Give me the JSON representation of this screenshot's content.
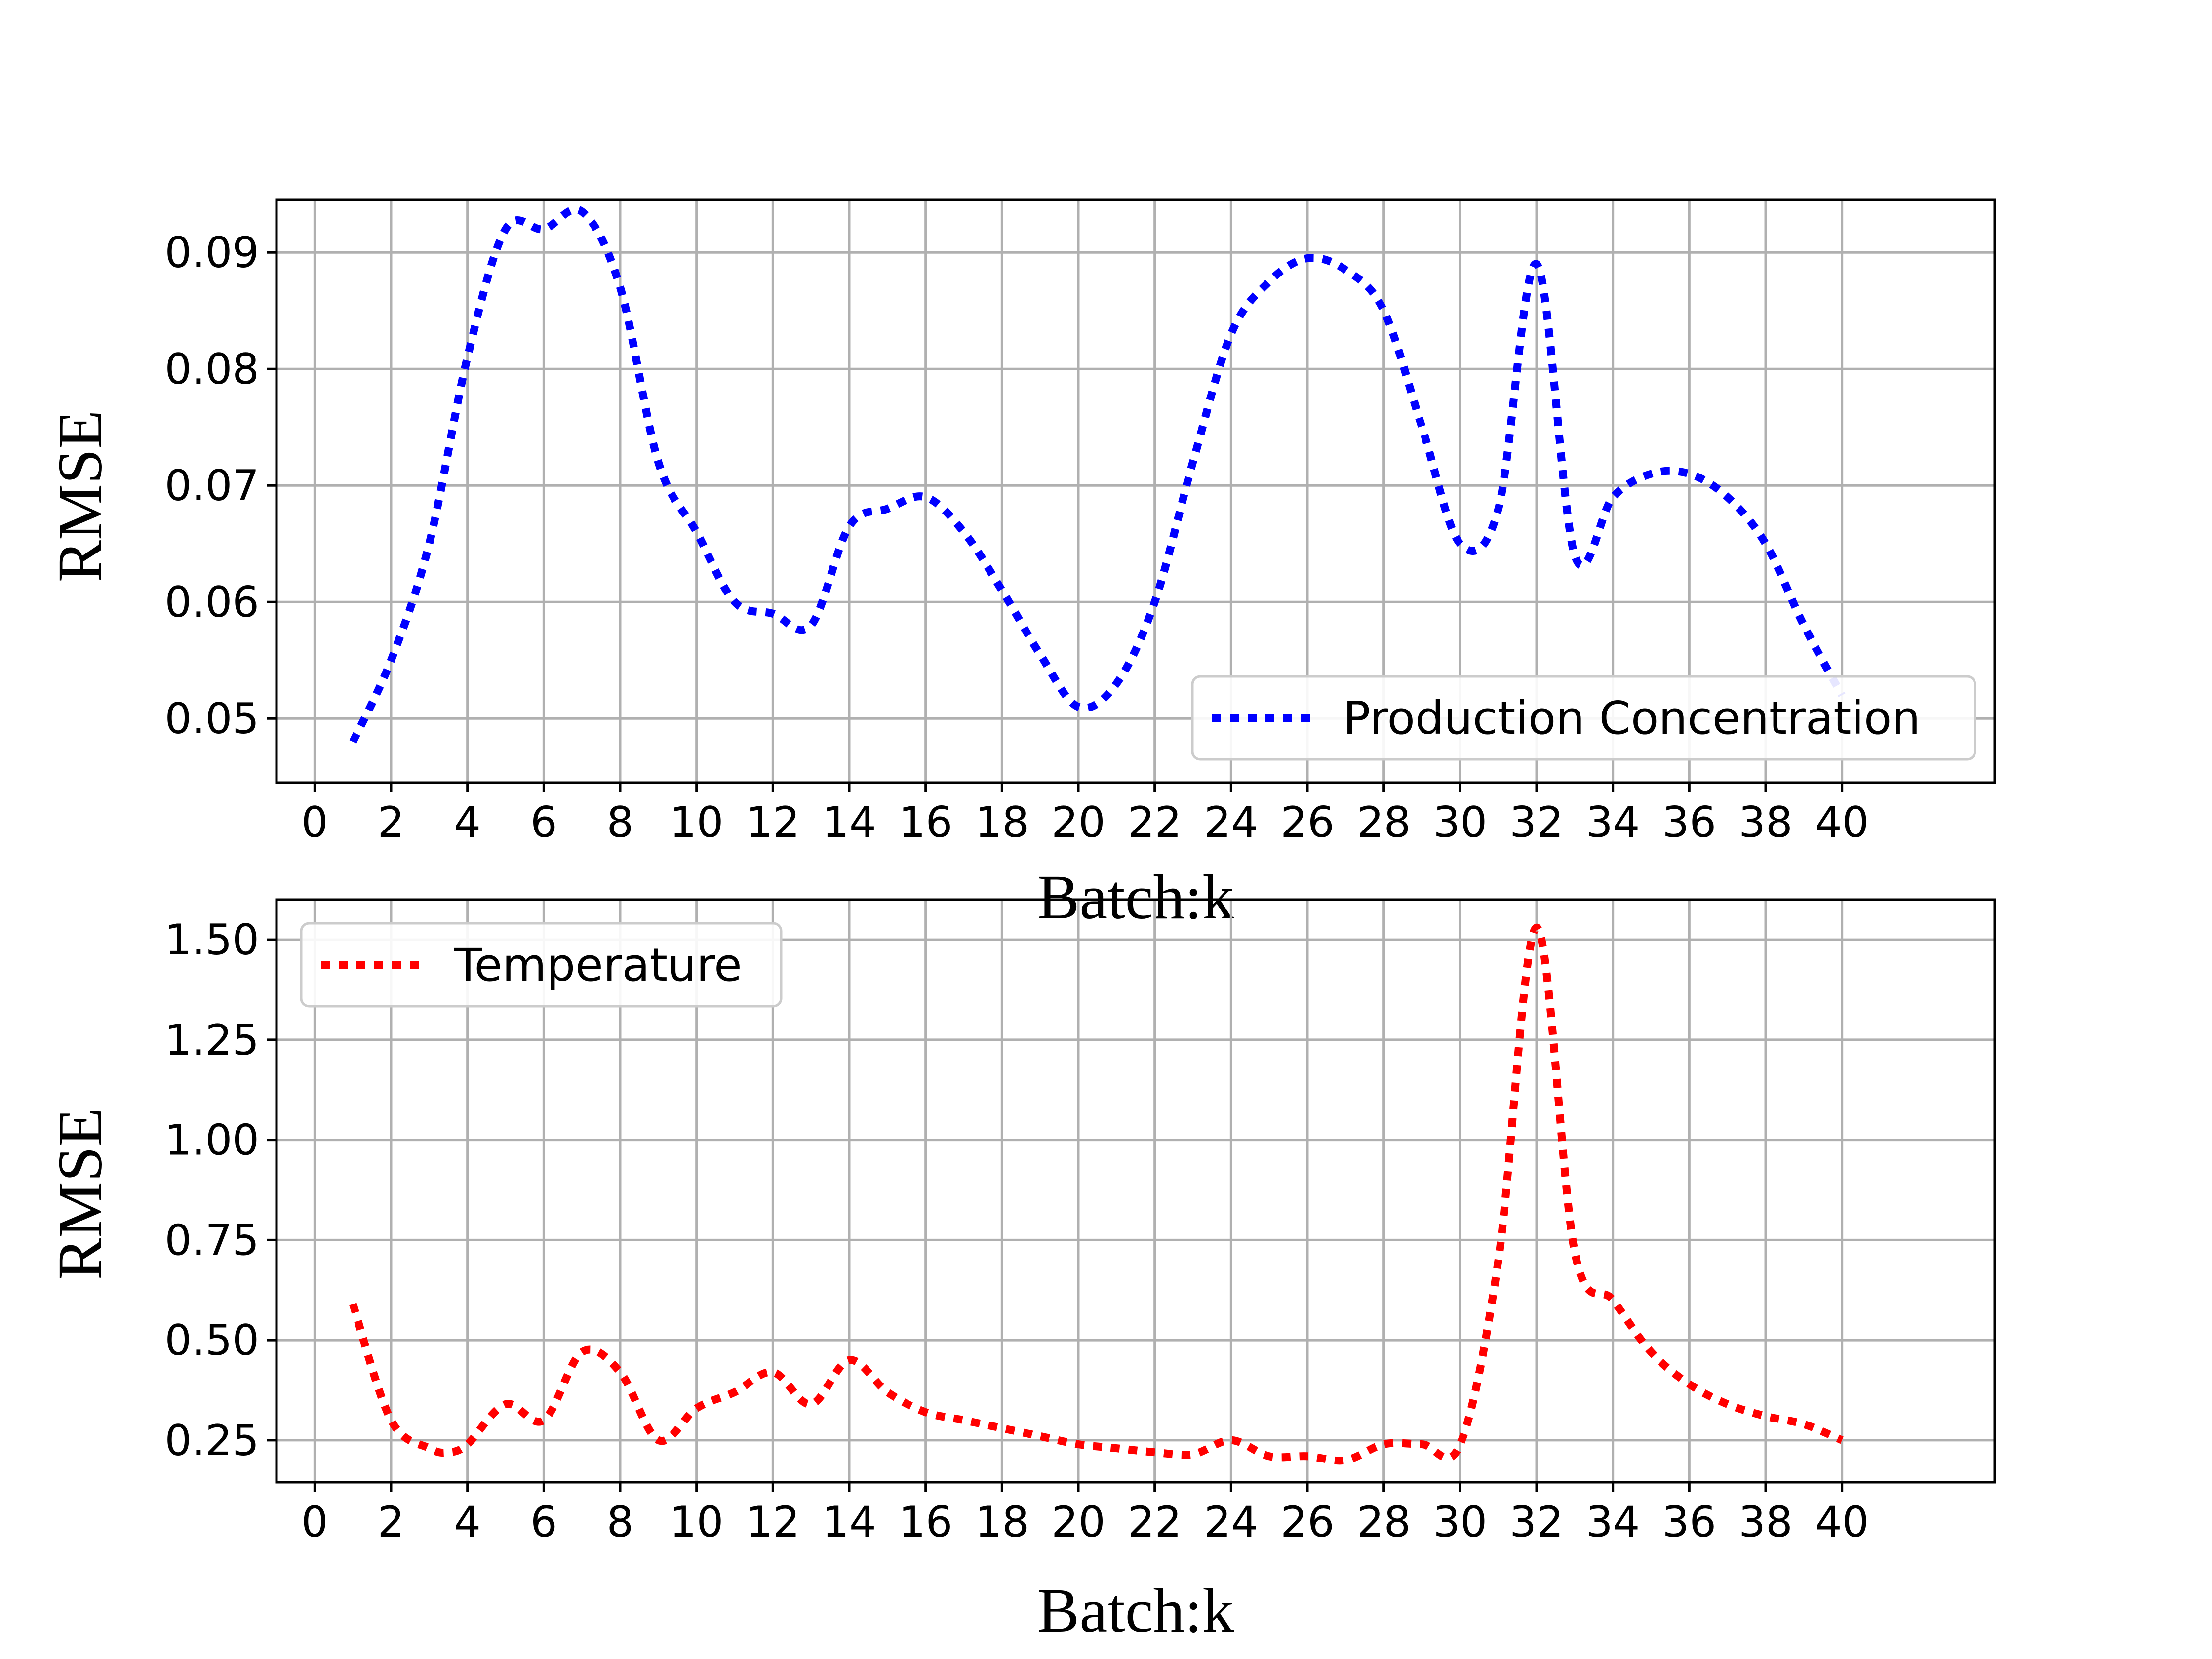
{
  "chart_data": [
    {
      "type": "line",
      "title": "",
      "xlabel": "Batch:k",
      "ylabel": "RMSE",
      "xlim": [
        -1,
        44
      ],
      "ylim": [
        0.0445,
        0.0945
      ],
      "xticks": [
        0,
        2,
        4,
        6,
        8,
        10,
        12,
        14,
        16,
        18,
        20,
        22,
        24,
        26,
        28,
        30,
        32,
        34,
        36,
        38,
        40
      ],
      "yticks": [
        "0.05",
        "0.06",
        "0.07",
        "0.08",
        "0.09"
      ],
      "grid": true,
      "legend_position": "bottom-right",
      "series": [
        {
          "name": "Production Concentration",
          "color": "#0000ff",
          "line_style": "dotted",
          "x": [
            1,
            2,
            3,
            4,
            5,
            6,
            7,
            8,
            9,
            10,
            11,
            12,
            13,
            14,
            15,
            16,
            17,
            18,
            19,
            20,
            21,
            22,
            23,
            24,
            25,
            26,
            27,
            28,
            29,
            30,
            31,
            32,
            33,
            34,
            35,
            36,
            37,
            38,
            39,
            40
          ],
          "values": [
            0.048,
            0.055,
            0.065,
            0.081,
            0.092,
            0.092,
            0.0935,
            0.087,
            0.072,
            0.066,
            0.06,
            0.059,
            0.058,
            0.0665,
            0.068,
            0.069,
            0.066,
            0.061,
            0.0555,
            0.051,
            0.053,
            0.06,
            0.072,
            0.083,
            0.0875,
            0.0895,
            0.0885,
            0.085,
            0.075,
            0.065,
            0.068,
            0.089,
            0.064,
            0.069,
            0.071,
            0.071,
            0.069,
            0.065,
            0.058,
            0.052
          ]
        }
      ]
    },
    {
      "type": "line",
      "title": "",
      "xlabel": "Batch:k",
      "ylabel": "RMSE",
      "xlim": [
        -1,
        44
      ],
      "ylim": [
        0.145,
        1.6
      ],
      "xticks": [
        0,
        2,
        4,
        6,
        8,
        10,
        12,
        14,
        16,
        18,
        20,
        22,
        24,
        26,
        28,
        30,
        32,
        34,
        36,
        38,
        40
      ],
      "yticks": [
        "0.25",
        "0.50",
        "0.75",
        "1.00",
        "1.25",
        "1.50"
      ],
      "grid": true,
      "legend_position": "top-left",
      "series": [
        {
          "name": "Temperature",
          "color": "#ff0000",
          "line_style": "dotted",
          "x": [
            1,
            2,
            3,
            3.5,
            4,
            5,
            6,
            7,
            8,
            9,
            10,
            11,
            12,
            13,
            14,
            15,
            16,
            17,
            18,
            19,
            20,
            21,
            22,
            23,
            24,
            25,
            26,
            27,
            28,
            29,
            30,
            31,
            32,
            33,
            34,
            35,
            36,
            37,
            38,
            39,
            40
          ],
          "values": [
            0.59,
            0.3,
            0.23,
            0.22,
            0.24,
            0.34,
            0.3,
            0.47,
            0.42,
            0.25,
            0.33,
            0.37,
            0.42,
            0.34,
            0.45,
            0.37,
            0.32,
            0.3,
            0.28,
            0.26,
            0.24,
            0.23,
            0.22,
            0.215,
            0.25,
            0.21,
            0.21,
            0.2,
            0.24,
            0.24,
            0.24,
            0.7,
            1.53,
            0.72,
            0.6,
            0.47,
            0.39,
            0.34,
            0.31,
            0.29,
            0.25
          ]
        }
      ]
    }
  ]
}
